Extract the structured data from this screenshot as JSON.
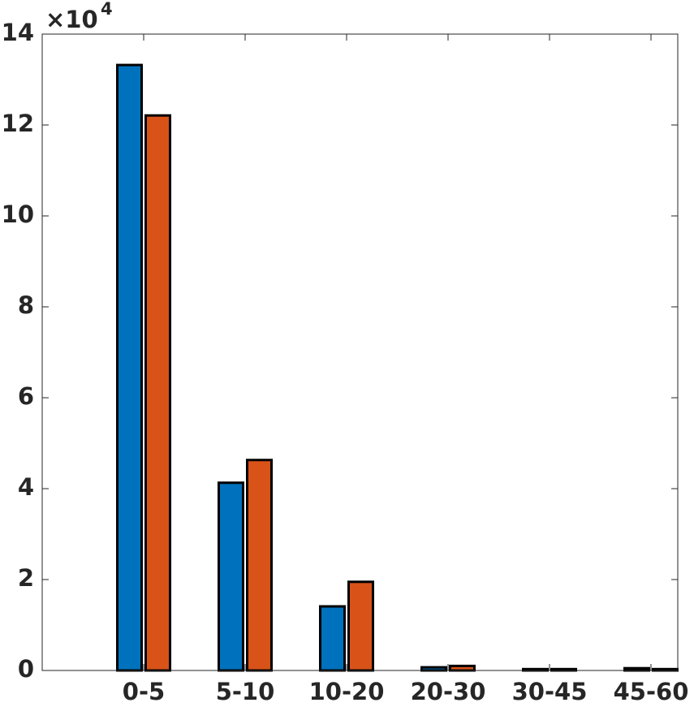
{
  "chart_data": {
    "type": "bar",
    "categories": [
      "0-5",
      "5-10",
      "10-20",
      "20-30",
      "30-45",
      "45-60"
    ],
    "series": [
      {
        "color": "#0072BD",
        "values": [
          13.32,
          4.13,
          1.41,
          0.07,
          0.03,
          0.05
        ]
      },
      {
        "color": "#D95319",
        "values": [
          12.21,
          4.63,
          1.95,
          0.1,
          0.03,
          0.03
        ]
      }
    ],
    "ylim": [
      0,
      14
    ],
    "yticks": [
      0,
      2,
      4,
      6,
      8,
      10,
      12,
      14
    ],
    "y_multiplier": {
      "base": "×10",
      "exponent": "4"
    },
    "grid": false
  }
}
